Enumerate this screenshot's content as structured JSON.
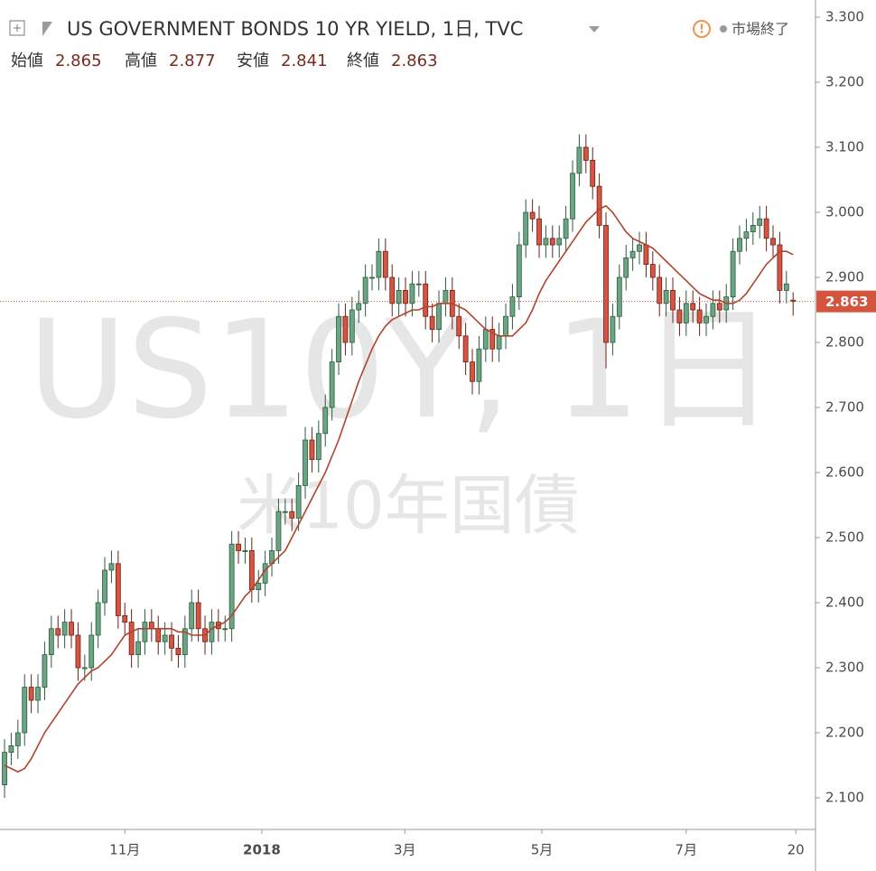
{
  "chart_data": {
    "type": "candlestick",
    "title": "US GOVERNMENT BONDS 10 YR YIELD, 1日, TVC",
    "ohlc_labels": [
      "始値",
      "高値",
      "安値",
      "終値"
    ],
    "status": "市場終了",
    "watermark": "US10Y, 1日",
    "watermark_subtitle": "米10年国債",
    "up_color": "#6ba583",
    "down_color": "#d75442",
    "candles": {
      "open": [
        2.12,
        2.17,
        2.18,
        2.2,
        2.27,
        2.25,
        2.27,
        2.32,
        2.36,
        2.35,
        2.37,
        2.35,
        2.3,
        2.3,
        2.35,
        2.4,
        2.45,
        2.46,
        2.38,
        2.37,
        2.32,
        2.34,
        2.37,
        2.36,
        2.34,
        2.35,
        2.33,
        2.32,
        2.36,
        2.4,
        2.36,
        2.34,
        2.37,
        2.36,
        2.36,
        2.49,
        2.48,
        2.48,
        2.42,
        2.43,
        2.46,
        2.48,
        2.54,
        2.54,
        2.53,
        2.58,
        2.65,
        2.62,
        2.66,
        2.7,
        2.77,
        2.84,
        2.8,
        2.85,
        2.86,
        2.9,
        2.9,
        2.94,
        2.9,
        2.86,
        2.88,
        2.86,
        2.89,
        2.89,
        2.84,
        2.82,
        2.86,
        2.88,
        2.84,
        2.81,
        2.77,
        2.74,
        2.79,
        2.82,
        2.79,
        2.81,
        2.84,
        2.87,
        2.95,
        3.0,
        2.99,
        2.95,
        2.96,
        2.95,
        2.96,
        2.99,
        3.06,
        3.1,
        3.08,
        3.04,
        2.98,
        2.8,
        2.84,
        2.9,
        2.93,
        2.94,
        2.95,
        2.92,
        2.9,
        2.86,
        2.88,
        2.85,
        2.83,
        2.86,
        2.85,
        2.83,
        2.84,
        2.86,
        2.85,
        2.87,
        2.94,
        2.96,
        2.97,
        2.98,
        2.99,
        2.96,
        2.95,
        2.88,
        2.865
      ],
      "high": [
        2.19,
        2.2,
        2.22,
        2.29,
        2.29,
        2.29,
        2.34,
        2.38,
        2.38,
        2.39,
        2.39,
        2.37,
        2.32,
        2.37,
        2.42,
        2.47,
        2.48,
        2.48,
        2.4,
        2.39,
        2.36,
        2.39,
        2.39,
        2.38,
        2.37,
        2.37,
        2.35,
        2.38,
        2.42,
        2.42,
        2.38,
        2.39,
        2.39,
        2.38,
        2.51,
        2.51,
        2.5,
        2.5,
        2.45,
        2.48,
        2.5,
        2.56,
        2.56,
        2.56,
        2.6,
        2.67,
        2.67,
        2.68,
        2.72,
        2.79,
        2.86,
        2.86,
        2.87,
        2.88,
        2.92,
        2.92,
        2.96,
        2.96,
        2.92,
        2.9,
        2.9,
        2.91,
        2.91,
        2.91,
        2.86,
        2.88,
        2.9,
        2.9,
        2.86,
        2.83,
        2.79,
        2.81,
        2.84,
        2.84,
        2.83,
        2.86,
        2.89,
        2.97,
        3.02,
        3.02,
        3.01,
        2.98,
        2.98,
        2.98,
        3.01,
        3.08,
        3.12,
        3.12,
        3.1,
        3.06,
        3.0,
        2.86,
        2.92,
        2.95,
        2.96,
        2.97,
        2.97,
        2.94,
        2.92,
        2.9,
        2.9,
        2.87,
        2.88,
        2.88,
        2.87,
        2.86,
        2.88,
        2.88,
        2.89,
        2.96,
        2.98,
        2.99,
        3.0,
        3.01,
        3.01,
        2.98,
        2.97,
        2.91,
        2.877
      ],
      "low": [
        2.1,
        2.15,
        2.16,
        2.18,
        2.23,
        2.23,
        2.25,
        2.3,
        2.33,
        2.33,
        2.33,
        2.28,
        2.28,
        2.28,
        2.33,
        2.38,
        2.43,
        2.36,
        2.35,
        2.3,
        2.3,
        2.32,
        2.34,
        2.32,
        2.32,
        2.31,
        2.3,
        2.3,
        2.34,
        2.34,
        2.32,
        2.32,
        2.34,
        2.34,
        2.34,
        2.46,
        2.46,
        2.4,
        2.4,
        2.41,
        2.44,
        2.46,
        2.52,
        2.51,
        2.51,
        2.56,
        2.6,
        2.6,
        2.64,
        2.68,
        2.75,
        2.78,
        2.78,
        2.83,
        2.84,
        2.88,
        2.88,
        2.88,
        2.84,
        2.84,
        2.84,
        2.84,
        2.87,
        2.82,
        2.8,
        2.8,
        2.84,
        2.82,
        2.79,
        2.75,
        2.72,
        2.72,
        2.77,
        2.77,
        2.77,
        2.79,
        2.82,
        2.85,
        2.93,
        2.97,
        2.93,
        2.93,
        2.93,
        2.93,
        2.94,
        2.97,
        3.04,
        3.06,
        3.02,
        2.96,
        2.76,
        2.78,
        2.82,
        2.88,
        2.91,
        2.92,
        2.9,
        2.88,
        2.84,
        2.84,
        2.83,
        2.81,
        2.81,
        2.83,
        2.81,
        2.81,
        2.82,
        2.83,
        2.83,
        2.85,
        2.92,
        2.94,
        2.95,
        2.96,
        2.94,
        2.93,
        2.86,
        2.86,
        2.841
      ],
      "close": [
        2.17,
        2.18,
        2.2,
        2.27,
        2.25,
        2.27,
        2.32,
        2.36,
        2.35,
        2.37,
        2.35,
        2.3,
        2.3,
        2.35,
        2.4,
        2.45,
        2.46,
        2.38,
        2.37,
        2.32,
        2.34,
        2.37,
        2.36,
        2.34,
        2.35,
        2.33,
        2.32,
        2.36,
        2.4,
        2.36,
        2.34,
        2.37,
        2.36,
        2.36,
        2.49,
        2.48,
        2.48,
        2.42,
        2.43,
        2.46,
        2.48,
        2.54,
        2.54,
        2.53,
        2.58,
        2.65,
        2.62,
        2.66,
        2.7,
        2.77,
        2.84,
        2.8,
        2.85,
        2.86,
        2.9,
        2.9,
        2.94,
        2.9,
        2.86,
        2.88,
        2.86,
        2.89,
        2.89,
        2.84,
        2.82,
        2.86,
        2.88,
        2.84,
        2.81,
        2.77,
        2.74,
        2.79,
        2.82,
        2.79,
        2.81,
        2.84,
        2.87,
        2.95,
        3.0,
        2.99,
        2.95,
        2.96,
        2.95,
        2.96,
        2.99,
        3.06,
        3.1,
        3.08,
        3.04,
        2.98,
        2.8,
        2.84,
        2.9,
        2.93,
        2.94,
        2.95,
        2.92,
        2.9,
        2.86,
        2.88,
        2.85,
        2.83,
        2.86,
        2.85,
        2.83,
        2.84,
        2.86,
        2.85,
        2.87,
        2.94,
        2.96,
        2.97,
        2.98,
        2.99,
        2.96,
        2.95,
        2.88,
        2.89,
        2.863
      ]
    },
    "overlay": {
      "color": "#b0442b",
      "values": [
        2.15,
        2.145,
        2.14,
        2.145,
        2.16,
        2.18,
        2.2,
        2.215,
        2.23,
        2.245,
        2.26,
        2.275,
        2.285,
        2.295,
        2.3,
        2.31,
        2.32,
        2.335,
        2.35,
        2.355,
        2.36,
        2.36,
        2.36,
        2.36,
        2.36,
        2.36,
        2.355,
        2.355,
        2.35,
        2.35,
        2.35,
        2.36,
        2.365,
        2.37,
        2.38,
        2.395,
        2.41,
        2.42,
        2.435,
        2.45,
        2.46,
        2.47,
        2.48,
        2.5,
        2.52,
        2.54,
        2.56,
        2.58,
        2.6,
        2.625,
        2.65,
        2.68,
        2.71,
        2.74,
        2.765,
        2.79,
        2.81,
        2.825,
        2.835,
        2.84,
        2.845,
        2.85,
        2.85,
        2.855,
        2.855,
        2.86,
        2.86,
        2.86,
        2.855,
        2.85,
        2.84,
        2.83,
        2.82,
        2.815,
        2.81,
        2.81,
        2.81,
        2.82,
        2.83,
        2.85,
        2.875,
        2.895,
        2.91,
        2.925,
        2.94,
        2.955,
        2.97,
        2.985,
        2.995,
        3.005,
        3.01,
        3.0,
        2.985,
        2.97,
        2.96,
        2.955,
        2.95,
        2.945,
        2.935,
        2.925,
        2.915,
        2.905,
        2.895,
        2.885,
        2.875,
        2.87,
        2.865,
        2.865,
        2.86,
        2.86,
        2.865,
        2.875,
        2.89,
        2.905,
        2.92,
        2.93,
        2.94,
        2.94,
        2.935
      ]
    },
    "last_price_color": "#d5543e",
    "grid": false,
    "xlim": [
      -0.68,
      121.35
    ],
    "xticks": [
      {
        "value": 18,
        "label": "11月"
      },
      {
        "value": 38.5,
        "label": "2018"
      },
      {
        "value": 59.9,
        "label": "3月"
      },
      {
        "value": 80.4,
        "label": "5月"
      },
      {
        "value": 102,
        "label": "7月"
      },
      {
        "value": 118.4,
        "label": "20"
      }
    ],
    "ylim": [
      2.0514,
      3.3264
    ],
    "yticks": [
      {
        "value": 2.1,
        "label": "2.100"
      },
      {
        "value": 2.2,
        "label": "2.200"
      },
      {
        "value": 2.3,
        "label": "2.300"
      },
      {
        "value": 2.4,
        "label": "2.400"
      },
      {
        "value": 2.5,
        "label": "2.500"
      },
      {
        "value": 2.6,
        "label": "2.600"
      },
      {
        "value": 2.7,
        "label": "2.700"
      },
      {
        "value": 2.8,
        "label": "2.800"
      },
      {
        "value": 2.9,
        "label": "2.900"
      },
      {
        "value": 3.0,
        "label": "3.000"
      },
      {
        "value": 3.1,
        "label": "3.100"
      },
      {
        "value": 3.2,
        "label": "3.200"
      },
      {
        "value": 3.3,
        "label": "3.300"
      }
    ]
  }
}
